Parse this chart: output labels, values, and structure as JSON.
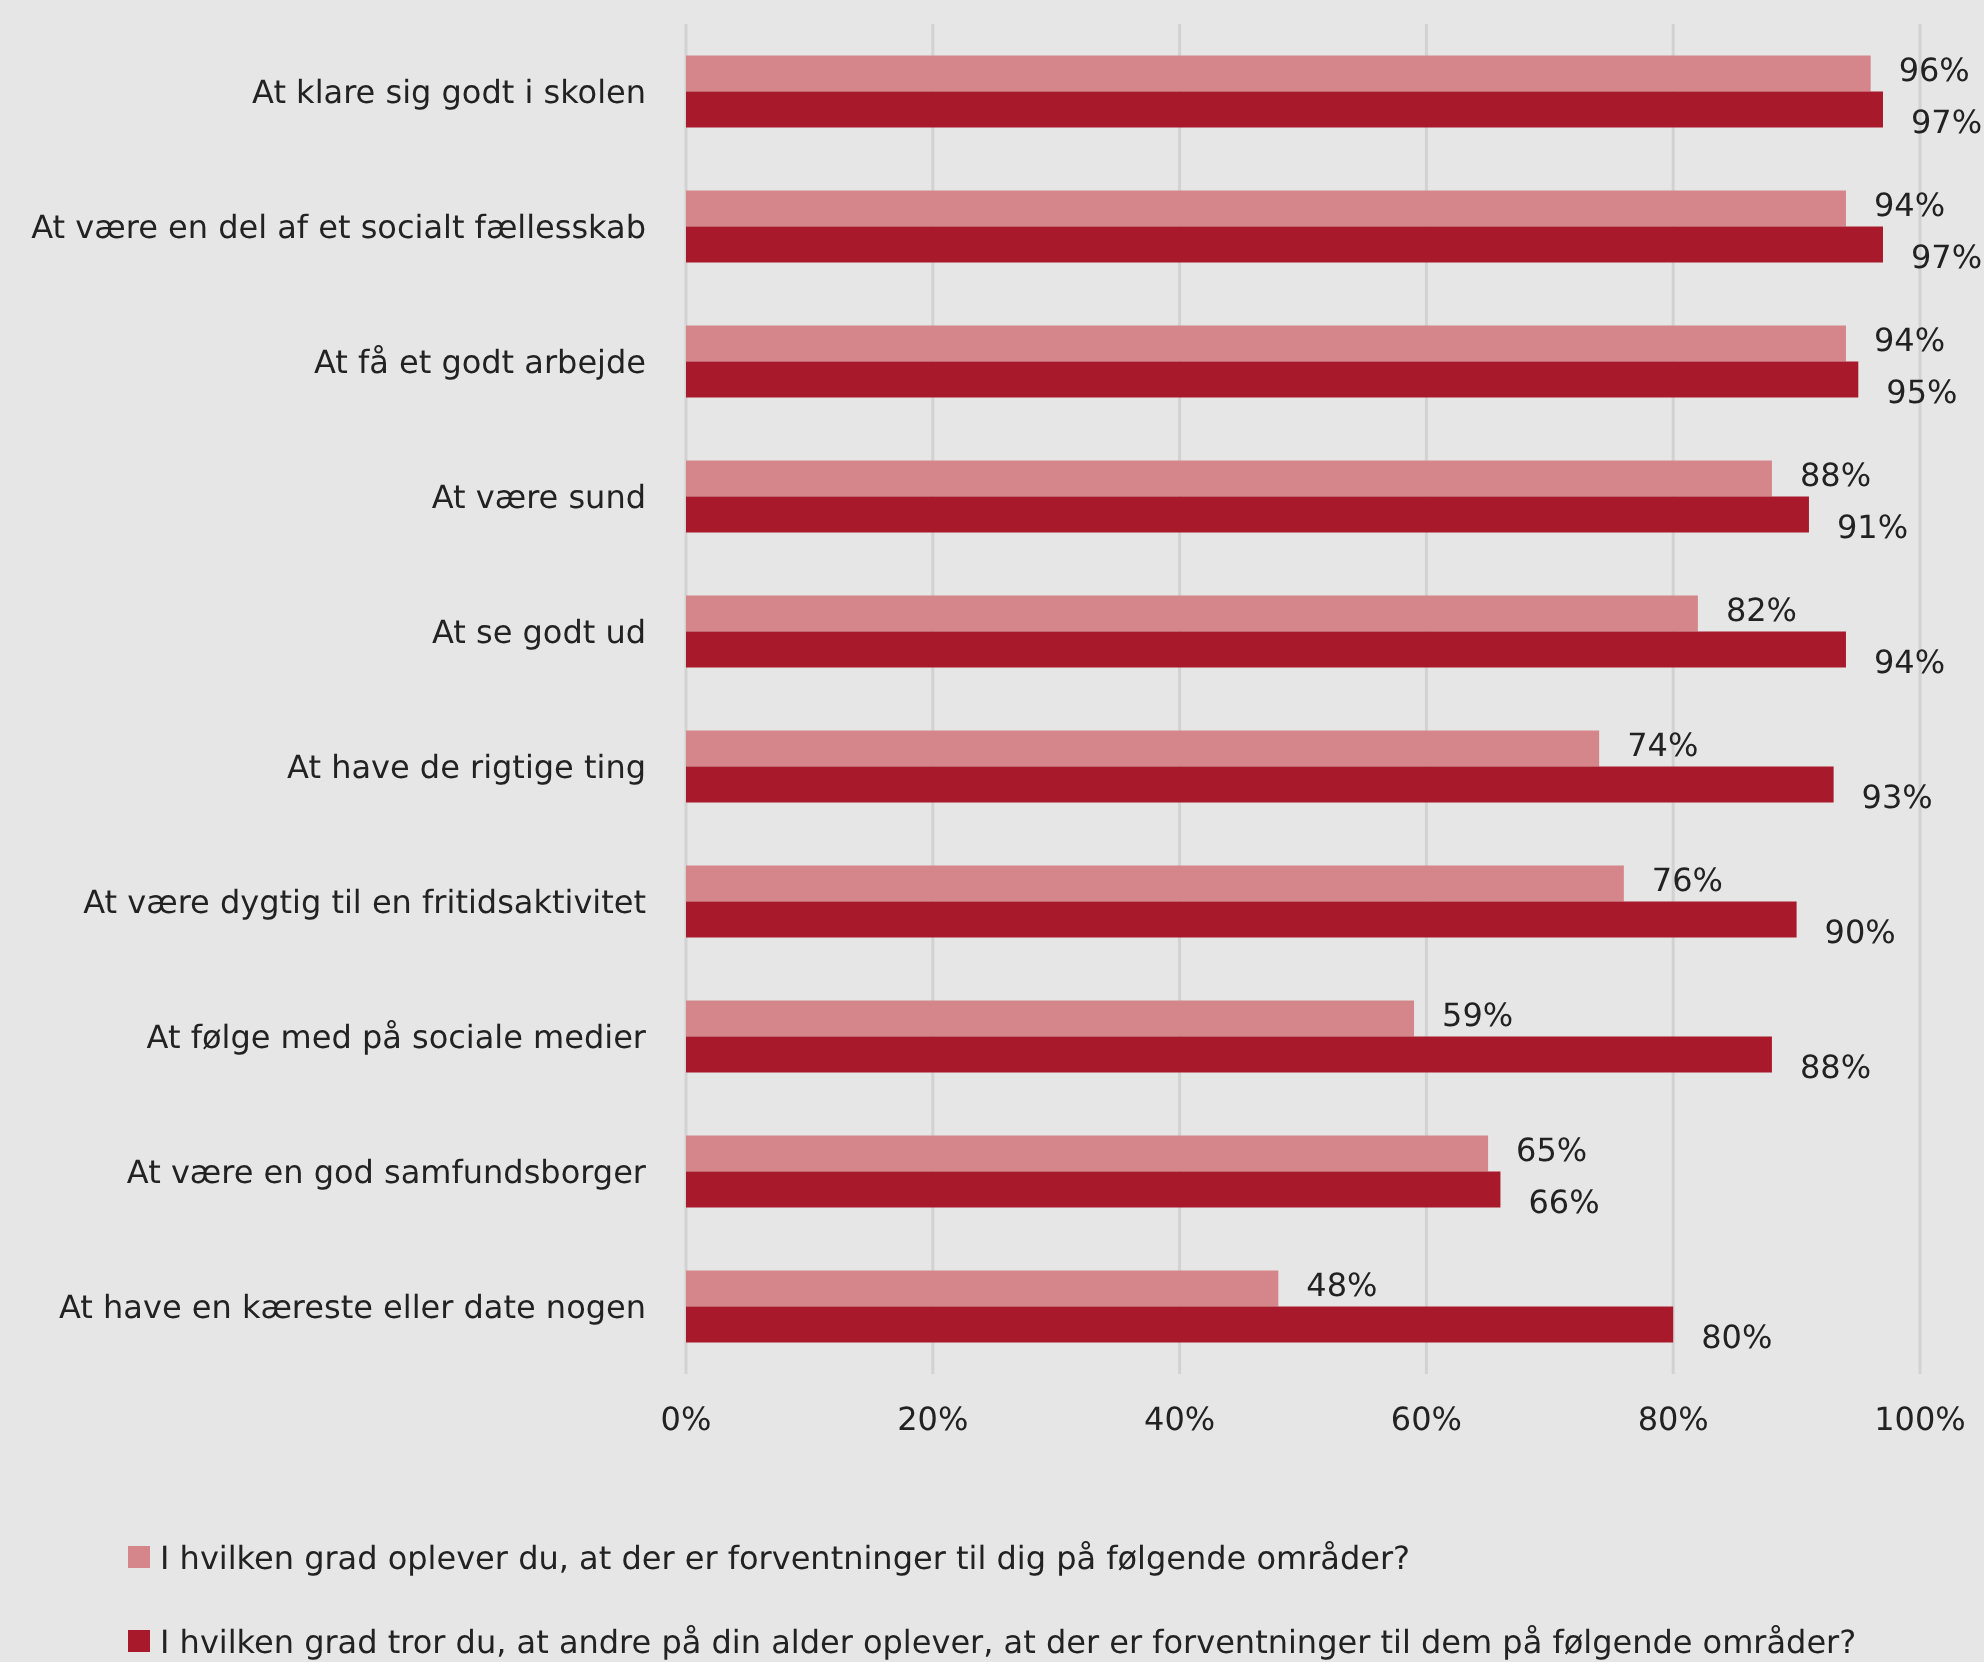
{
  "chart_data": {
    "type": "bar",
    "orientation": "horizontal",
    "categories": [
      "At klare sig godt i skolen",
      "At være en del af et socialt fællesskab",
      "At få et godt arbejde",
      "At være sund",
      "At se godt ud",
      "At have de rigtige ting",
      "At være dygtig til en fritidsaktivitet",
      "At følge med på sociale medier",
      "At være en god samfundsborger",
      "At have en kæreste eller date nogen"
    ],
    "series": [
      {
        "name": "I hvilken grad oplever du, at der er forventninger til dig på følgende områder?",
        "color": "#d4868a",
        "values": [
          96,
          94,
          94,
          88,
          82,
          74,
          76,
          59,
          65,
          48
        ],
        "value_labels": [
          "96%",
          "94%",
          "94%",
          "88%",
          "82%",
          "74%",
          "76%",
          "59%",
          "65%",
          "48%"
        ]
      },
      {
        "name": "I hvilken grad tror du, at andre på din alder oplever, at der er forventninger til dem på følgende områder?",
        "color": "#a8192b",
        "values": [
          97,
          97,
          95,
          91,
          94,
          93,
          90,
          88,
          66,
          80
        ],
        "value_labels": [
          "97%",
          "97%",
          "95%",
          "91%",
          "94%",
          "93%",
          "90%",
          "88%",
          "66%",
          "80%"
        ]
      }
    ],
    "xlim": [
      0,
      100
    ],
    "xticks": [
      {
        "value": 0,
        "label": "0%"
      },
      {
        "value": 20,
        "label": "20%"
      },
      {
        "value": 40,
        "label": "40%"
      },
      {
        "value": 60,
        "label": "60%"
      },
      {
        "value": 80,
        "label": "80%"
      },
      {
        "value": 100,
        "label": "100%"
      }
    ],
    "grid": "x",
    "legend": "bottom left"
  }
}
